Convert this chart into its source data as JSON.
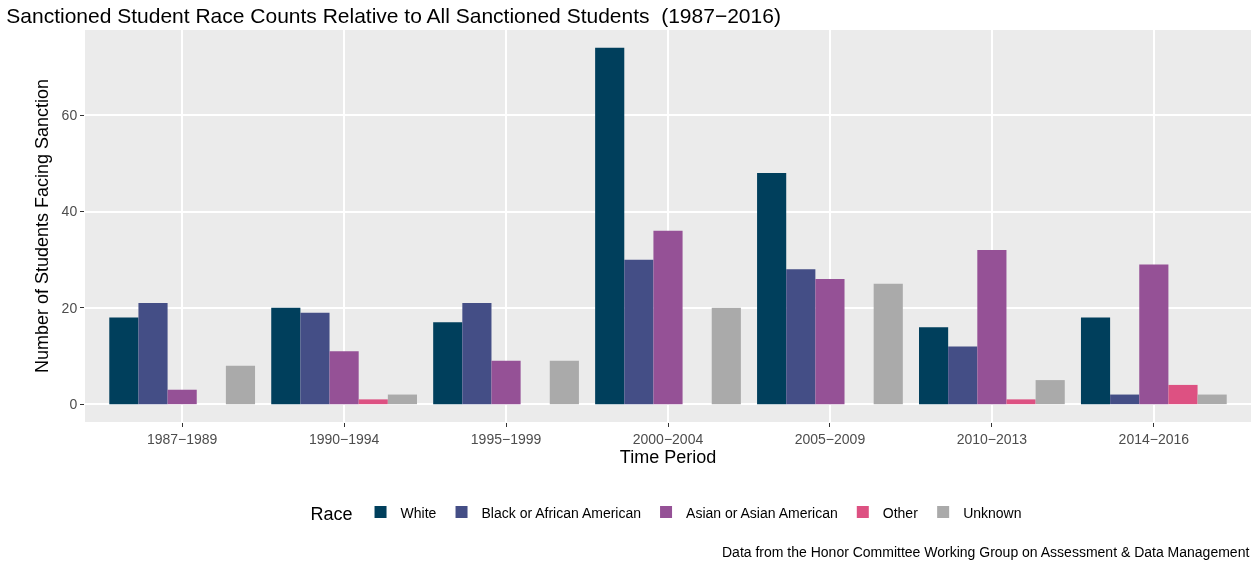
{
  "chart_data": {
    "type": "bar",
    "title": "Sanctioned Student Race Counts Relative to All Sanctioned Students  (1987−2016)",
    "xlabel": "Time Period",
    "ylabel": "Number of Students Facing Sanction",
    "legend_title": "Race",
    "annotations": [
      "Data from the Honor Committee Working Group on Assessment & Data Management"
    ],
    "categories": [
      "1987−1989",
      "1990−1994",
      "1995−1999",
      "2000−2004",
      "2005−2009",
      "2010−2013",
      "2014−2016"
    ],
    "series": [
      {
        "name": "White",
        "color": "#003f5c",
        "values": [
          18,
          20,
          17,
          74,
          48,
          16,
          18
        ]
      },
      {
        "name": "Black or African American",
        "color": "#444e86",
        "values": [
          21,
          19,
          21,
          30,
          28,
          12,
          2
        ]
      },
      {
        "name": "Asian or Asian American",
        "color": "#955196",
        "values": [
          3,
          11,
          9,
          36,
          26,
          32,
          29
        ]
      },
      {
        "name": "Other",
        "color": "#dd5182",
        "values": [
          null,
          1,
          null,
          null,
          null,
          1,
          4
        ]
      },
      {
        "name": "Unknown",
        "color": "#aaaaaa",
        "values": [
          8,
          2,
          9,
          20,
          25,
          5,
          2
        ]
      }
    ],
    "ylim": [
      -3.7,
      77.7
    ],
    "yticks": [
      0,
      20,
      40,
      60
    ],
    "grid": true,
    "legend": "bottom"
  }
}
